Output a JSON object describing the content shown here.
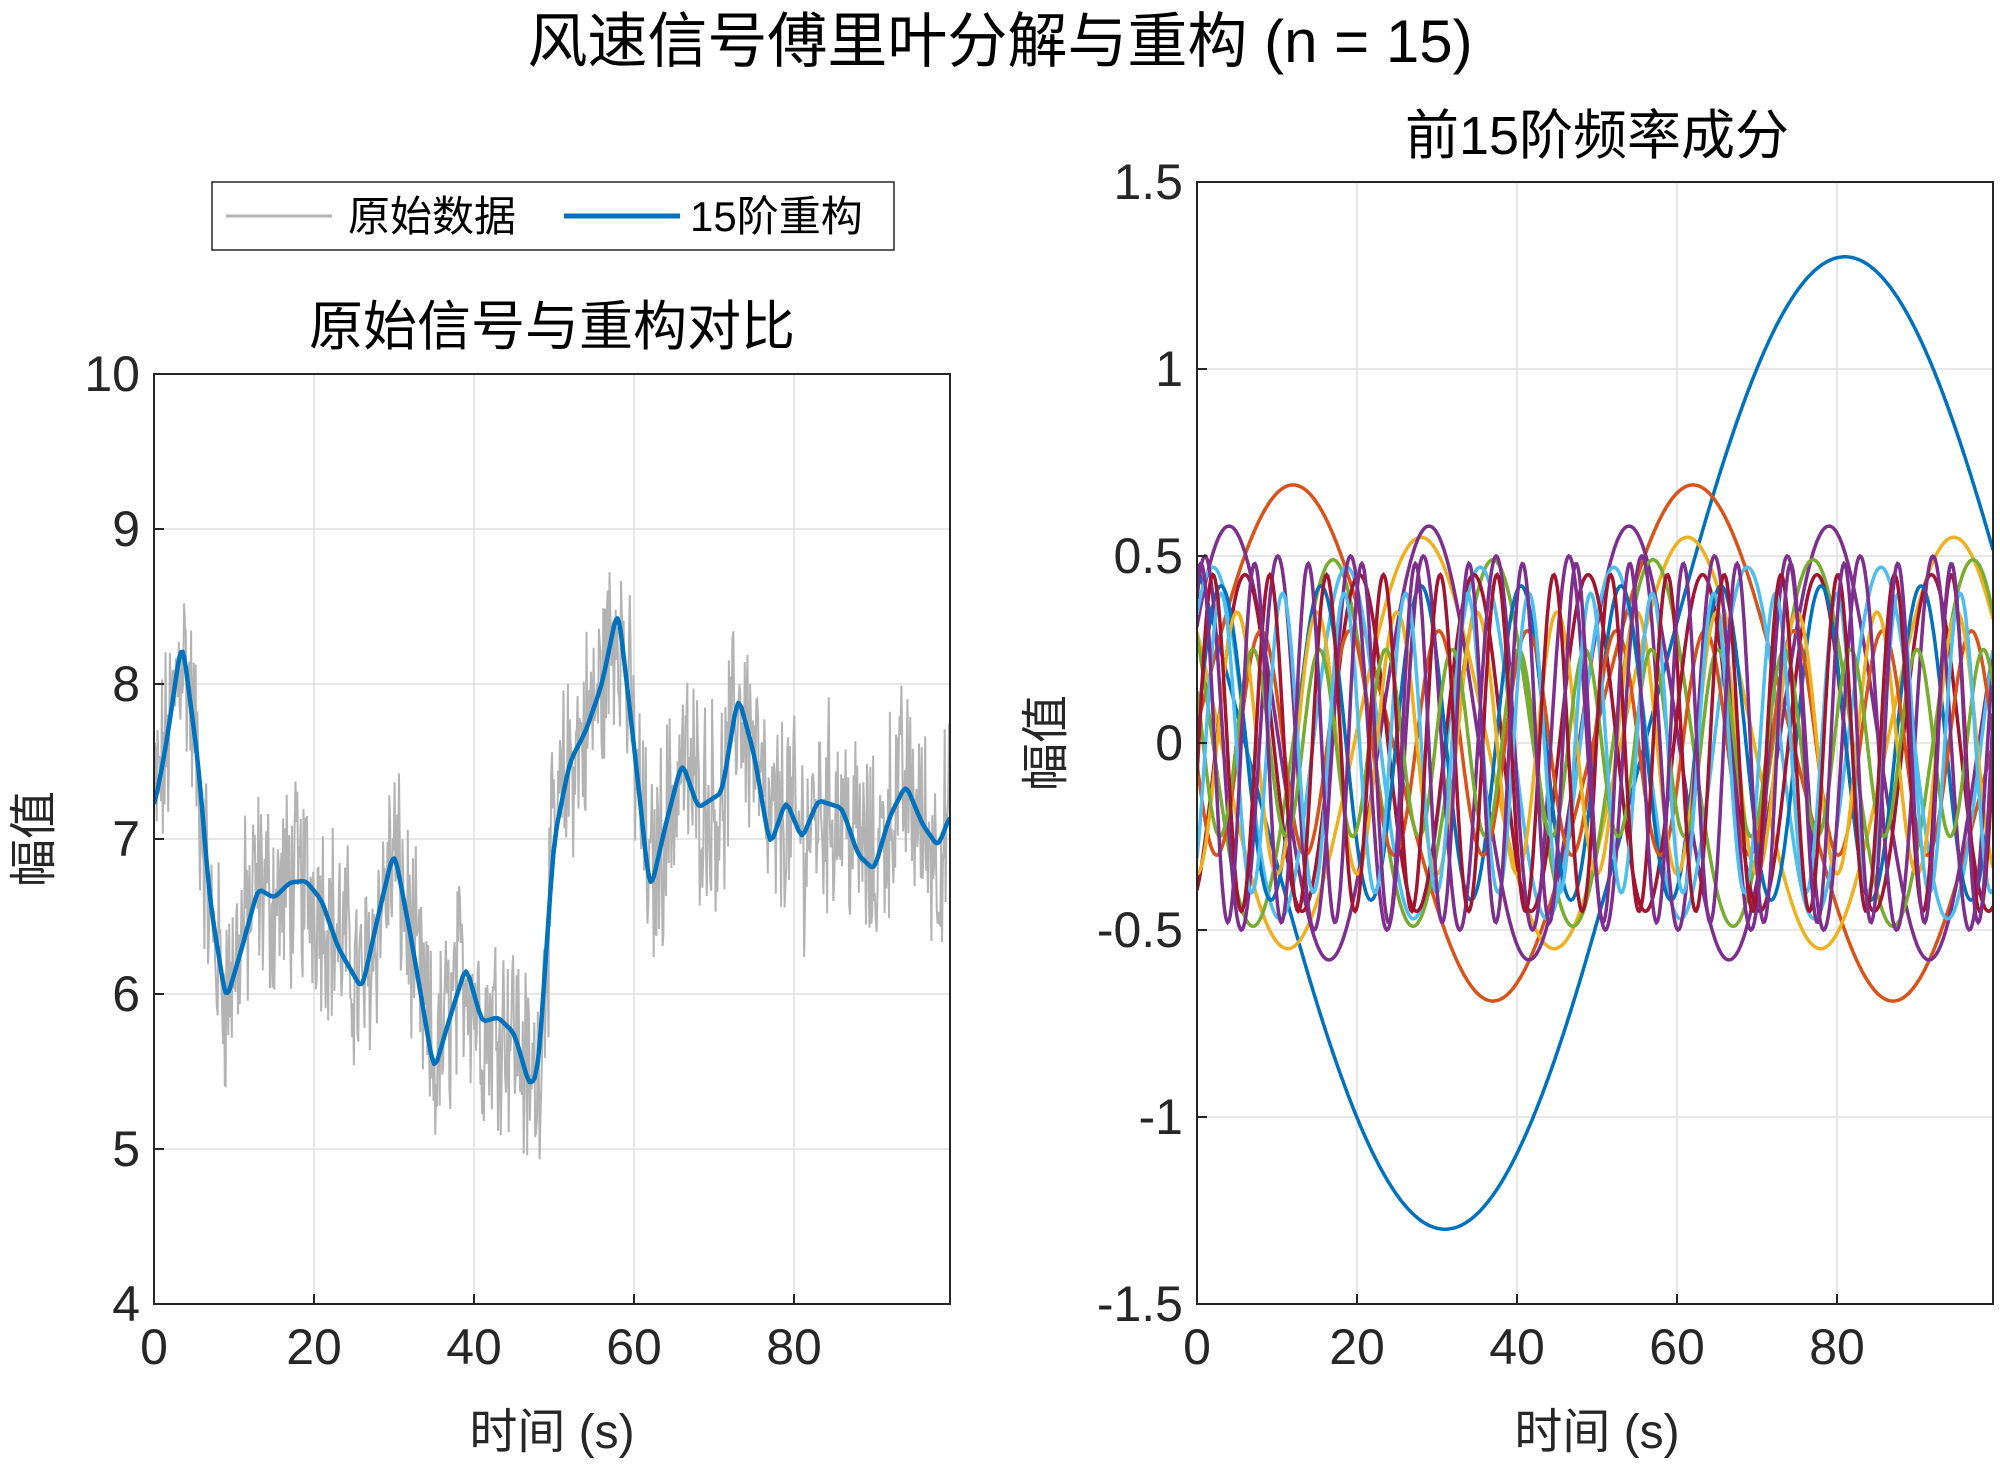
{
  "figure": {
    "suptitle": "风速信号傅里叶分解与重构 (n = 15)"
  },
  "chart_data": [
    {
      "type": "line",
      "title": "原始信号与重构对比",
      "xlabel": "时间 (s)",
      "ylabel": "幅值",
      "xlim": [
        0,
        99.5
      ],
      "ylim": [
        4,
        10
      ],
      "xticks": [
        "0",
        "20",
        "40",
        "60",
        "80"
      ],
      "xtick_values": [
        0,
        20,
        40,
        60,
        80
      ],
      "yticks": [
        "4",
        "5",
        "6",
        "7",
        "8",
        "9",
        "10"
      ],
      "ytick_values": [
        4,
        5,
        6,
        7,
        8,
        9,
        10
      ],
      "grid": true,
      "legend": {
        "placement": "top-outside",
        "orientation": "horizontal"
      },
      "series": [
        {
          "name": "原始数据",
          "color": "#b3b3b3",
          "style": "noisy",
          "x": [
            0,
            2,
            3.5,
            5,
            7,
            9,
            11,
            13,
            15,
            17,
            19,
            21,
            24,
            26,
            28,
            30,
            32,
            35,
            37,
            39,
            41,
            43,
            45,
            47,
            48,
            50,
            52,
            54,
            56,
            58,
            60,
            62,
            64,
            66,
            68,
            71,
            73,
            75,
            77,
            79,
            81,
            83,
            86,
            88,
            90,
            92,
            94,
            96,
            98,
            99.5
          ],
          "y": [
            7.2,
            7.7,
            8.3,
            7.7,
            6.5,
            6.0,
            6.4,
            6.7,
            6.6,
            6.7,
            6.7,
            6.6,
            6.3,
            6.0,
            6.5,
            6.9,
            6.4,
            5.5,
            5.9,
            6.2,
            5.8,
            5.85,
            5.8,
            5.4,
            5.5,
            7.0,
            7.5,
            7.7,
            8.0,
            8.5,
            7.6,
            6.7,
            7.1,
            7.5,
            7.3,
            7.2,
            7.9,
            7.6,
            7.0,
            7.2,
            7.0,
            7.2,
            7.2,
            7.0,
            6.8,
            7.2,
            7.35,
            7.1,
            6.9,
            7.1
          ]
        },
        {
          "name": "15阶重构",
          "color": "#0072bd",
          "style": "smooth",
          "x": [
            0,
            1.5,
            3.5,
            5.5,
            7,
            9,
            11,
            13,
            15,
            17,
            19,
            21,
            23,
            26,
            28,
            30,
            32,
            35,
            37,
            39,
            41,
            43,
            45,
            47,
            48,
            50,
            52,
            54,
            56,
            58,
            60,
            62,
            64,
            66,
            68,
            71,
            73,
            75,
            77,
            79,
            81,
            83,
            86,
            88,
            90,
            92,
            94,
            96,
            98,
            99.5
          ],
          "y": [
            7.2,
            7.6,
            8.3,
            7.5,
            6.6,
            5.95,
            6.3,
            6.68,
            6.62,
            6.72,
            6.73,
            6.6,
            6.3,
            6.03,
            6.5,
            6.93,
            6.4,
            5.5,
            5.85,
            6.18,
            5.82,
            5.85,
            5.75,
            5.4,
            5.5,
            7.0,
            7.5,
            7.7,
            8.0,
            8.5,
            7.6,
            6.65,
            7.1,
            7.5,
            7.2,
            7.3,
            7.93,
            7.55,
            6.95,
            7.25,
            7.0,
            7.25,
            7.2,
            6.9,
            6.8,
            7.15,
            7.35,
            7.1,
            6.95,
            7.15
          ]
        }
      ]
    },
    {
      "type": "line",
      "title": "前15阶频率成分",
      "xlabel": "时间 (s)",
      "ylabel": "幅值",
      "xlim": [
        0,
        99.5
      ],
      "ylim": [
        -1.5,
        1.5
      ],
      "xticks": [
        "0",
        "20",
        "40",
        "60",
        "80"
      ],
      "xtick_values": [
        0,
        20,
        40,
        60,
        80
      ],
      "yticks": [
        "-1.5",
        "-1",
        "-0.5",
        "0",
        "0.5",
        "1",
        "1.5"
      ],
      "ytick_values": [
        -1.5,
        -1,
        -0.5,
        0,
        0.5,
        1,
        1.5
      ],
      "grid": true,
      "components": [
        {
          "color": "#0072bd",
          "amplitude": 1.3,
          "period": 100,
          "peak_at": 81
        },
        {
          "color": "#d95319",
          "amplitude": 0.69,
          "period": 50,
          "peak_at": 12
        },
        {
          "color": "#edb120",
          "amplitude": 0.55,
          "period": 33.3,
          "peak_at": 28
        },
        {
          "color": "#7e2f8e",
          "amplitude": 0.58,
          "period": 25,
          "peak_at": 4
        },
        {
          "color": "#77ac30",
          "amplitude": 0.49,
          "period": 20,
          "peak_at": 17
        },
        {
          "color": "#4dbeee",
          "amplitude": 0.47,
          "period": 16.7,
          "peak_at": 2
        },
        {
          "color": "#a2142f",
          "amplitude": 0.45,
          "period": 14.3,
          "peak_at": 6
        },
        {
          "color": "#0072bd",
          "amplitude": 0.42,
          "period": 12.5,
          "peak_at": 3
        },
        {
          "color": "#d95319",
          "amplitude": 0.3,
          "period": 11.1,
          "peak_at": 8
        },
        {
          "color": "#edb120",
          "amplitude": 0.35,
          "period": 10,
          "peak_at": 5
        },
        {
          "color": "#7e2f8e",
          "amplitude": 0.5,
          "period": 9.1,
          "peak_at": 1
        },
        {
          "color": "#77ac30",
          "amplitude": 0.25,
          "period": 8.3,
          "peak_at": 7
        },
        {
          "color": "#4dbeee",
          "amplitude": 0.4,
          "period": 7.7,
          "peak_at": 3
        },
        {
          "color": "#a2142f",
          "amplitude": 0.45,
          "period": 7.1,
          "peak_at": 2
        },
        {
          "color": "#7e2f8e",
          "amplitude": 0.48,
          "period": 6.7,
          "peak_at": 0.5
        }
      ]
    }
  ]
}
